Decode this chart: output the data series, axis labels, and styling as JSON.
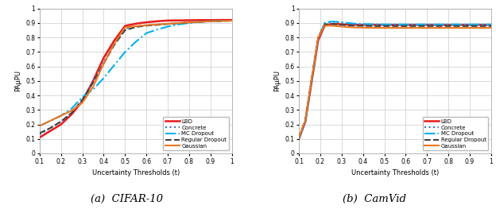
{
  "cifar10": {
    "x": [
      0.1,
      0.15,
      0.2,
      0.25,
      0.3,
      0.35,
      0.4,
      0.45,
      0.5,
      0.55,
      0.6,
      0.65,
      0.7,
      0.75,
      0.8,
      0.85,
      0.9,
      0.95,
      1.0
    ],
    "LBD": [
      0.11,
      0.155,
      0.2,
      0.27,
      0.36,
      0.5,
      0.66,
      0.78,
      0.88,
      0.895,
      0.905,
      0.912,
      0.917,
      0.918,
      0.919,
      0.92,
      0.92,
      0.921,
      0.921
    ],
    "Concrete": [
      0.13,
      0.175,
      0.22,
      0.28,
      0.37,
      0.5,
      0.63,
      0.76,
      0.86,
      0.875,
      0.885,
      0.89,
      0.895,
      0.9,
      0.905,
      0.91,
      0.913,
      0.915,
      0.917
    ],
    "MC_Dropout": [
      0.19,
      0.225,
      0.26,
      0.31,
      0.39,
      0.44,
      0.52,
      0.61,
      0.7,
      0.77,
      0.83,
      0.855,
      0.875,
      0.89,
      0.9,
      0.907,
      0.912,
      0.915,
      0.917
    ],
    "Regular_Dropout": [
      0.14,
      0.175,
      0.22,
      0.28,
      0.37,
      0.49,
      0.62,
      0.75,
      0.85,
      0.872,
      0.882,
      0.887,
      0.893,
      0.898,
      0.903,
      0.908,
      0.912,
      0.914,
      0.916
    ],
    "Gaussian": [
      0.19,
      0.225,
      0.26,
      0.295,
      0.35,
      0.46,
      0.62,
      0.76,
      0.87,
      0.878,
      0.885,
      0.89,
      0.895,
      0.9,
      0.904,
      0.908,
      0.912,
      0.914,
      0.916
    ]
  },
  "camvid": {
    "x": [
      0.1,
      0.13,
      0.16,
      0.19,
      0.22,
      0.25,
      0.28,
      0.31,
      0.35,
      0.4,
      0.45,
      0.5,
      0.55,
      0.6,
      0.65,
      0.7,
      0.75,
      0.8,
      0.85,
      0.9,
      0.95,
      1.0
    ],
    "LBD": [
      0.1,
      0.22,
      0.5,
      0.78,
      0.88,
      0.893,
      0.893,
      0.89,
      0.888,
      0.887,
      0.887,
      0.887,
      0.887,
      0.887,
      0.887,
      0.887,
      0.887,
      0.887,
      0.887,
      0.887,
      0.887,
      0.887
    ],
    "Concrete": [
      0.1,
      0.22,
      0.5,
      0.79,
      0.895,
      0.908,
      0.906,
      0.901,
      0.895,
      0.891,
      0.89,
      0.889,
      0.889,
      0.889,
      0.889,
      0.889,
      0.889,
      0.889,
      0.889,
      0.889,
      0.889,
      0.889
    ],
    "MC_Dropout": [
      0.1,
      0.22,
      0.51,
      0.79,
      0.9,
      0.91,
      0.908,
      0.903,
      0.897,
      0.893,
      0.891,
      0.89,
      0.89,
      0.89,
      0.89,
      0.89,
      0.89,
      0.89,
      0.89,
      0.89,
      0.89,
      0.89
    ],
    "Regular_Dropout": [
      0.11,
      0.23,
      0.52,
      0.8,
      0.89,
      0.893,
      0.89,
      0.886,
      0.882,
      0.88,
      0.879,
      0.879,
      0.879,
      0.879,
      0.879,
      0.879,
      0.879,
      0.879,
      0.879,
      0.879,
      0.879,
      0.879
    ],
    "Gaussian": [
      0.11,
      0.23,
      0.52,
      0.8,
      0.882,
      0.882,
      0.878,
      0.874,
      0.87,
      0.868,
      0.867,
      0.866,
      0.866,
      0.866,
      0.866,
      0.866,
      0.866,
      0.866,
      0.866,
      0.866,
      0.866,
      0.866
    ]
  },
  "colors": {
    "LBD": "#e8191a",
    "Concrete": "#4472c4",
    "MC_Dropout": "#00b0f0",
    "Regular_Dropout": "#404040",
    "Gaussian": "#e87722"
  },
  "linestyles": {
    "LBD": "-",
    "Concrete": ":",
    "MC_Dropout": "-.",
    "Regular_Dropout": "--",
    "Gaussian": "-"
  },
  "linewidths": {
    "LBD": 1.8,
    "Concrete": 1.5,
    "MC_Dropout": 1.5,
    "Regular_Dropout": 1.5,
    "Gaussian": 1.5
  },
  "labels": {
    "LBD": "LBD",
    "Concrete": "Concrete",
    "MC_Dropout": "MC Dropout",
    "Regular_Dropout": "Regular Dropout",
    "Gaussian": "Gaussian"
  },
  "xlabel": "Uncertainty Thresholds (t)",
  "ylabel": "PAμPU",
  "ylim": [
    0,
    1
  ],
  "xlim": [
    0.1,
    1.0
  ],
  "title_a": "(a)  CIFAR-10",
  "title_b": "(b)  CamVid",
  "background_color": "#ffffff",
  "grid_color": "#d3d3d3"
}
